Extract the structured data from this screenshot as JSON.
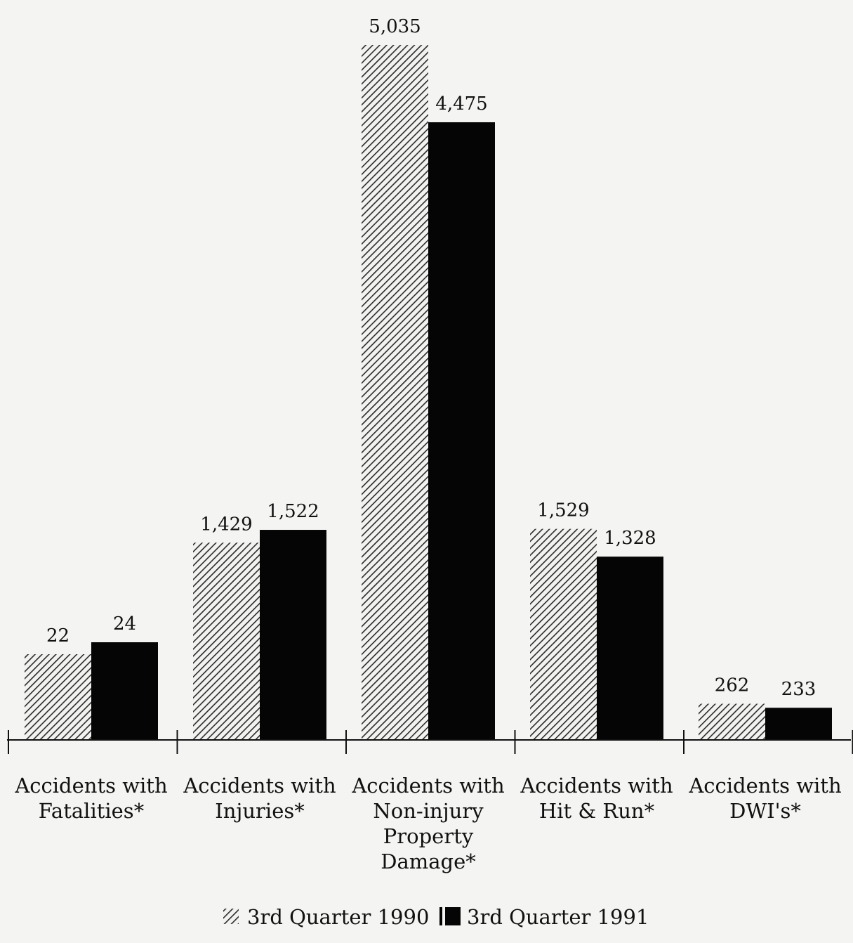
{
  "chart_data": {
    "type": "bar",
    "title": "",
    "xlabel": "",
    "ylabel": "",
    "categories": [
      [
        "Accidents with",
        "Fatalities*"
      ],
      [
        "Accidents with",
        "Injuries*"
      ],
      [
        "Accidents with",
        "Non-injury",
        "Property",
        "Damage*"
      ],
      [
        "Accidents with",
        "Hit & Run*"
      ],
      [
        "Accidents with",
        "DWI's*"
      ]
    ],
    "series": [
      {
        "name": "3rd Quarter 1990",
        "pattern": "diagonal-hatch",
        "color": "#2a2a2a",
        "values": [
          22,
          1429,
          5035,
          1529,
          262
        ],
        "value_labels": [
          "22",
          "1,429",
          "5,035",
          "1,529",
          "262"
        ]
      },
      {
        "name": "3rd Quarter 1991",
        "pattern": "solid",
        "color": "#050505",
        "values": [
          24,
          1522,
          4475,
          1328,
          233
        ],
        "value_labels": [
          "24",
          "1,522",
          "4,475",
          "1,328",
          "233"
        ]
      }
    ],
    "grid": false,
    "legend_position": "bottom-center",
    "value_labels_shown": true
  }
}
